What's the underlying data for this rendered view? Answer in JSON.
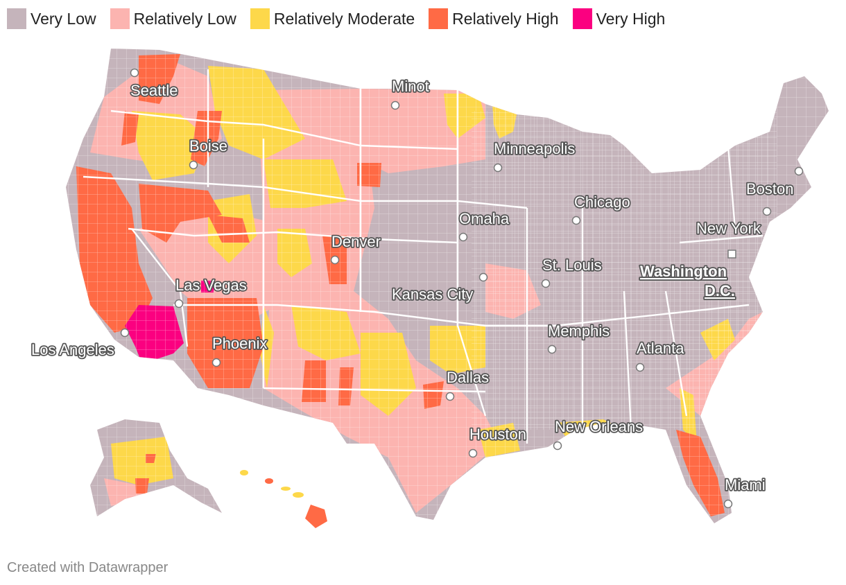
{
  "legend": {
    "items": [
      {
        "label": "Very Low",
        "color": "#c5b4bb"
      },
      {
        "label": "Relatively Low",
        "color": "#fcb4b0"
      },
      {
        "label": "Relatively Moderate",
        "color": "#fdd84a"
      },
      {
        "label": "Relatively High",
        "color": "#ff6a45"
      },
      {
        "label": "Very High",
        "color": "#fb0080"
      }
    ]
  },
  "cities": [
    "Seattle",
    "Minot",
    "Boise",
    "Minneapolis",
    "Boston",
    "Chicago",
    "Omaha",
    "New York",
    "Denver",
    "Washington D.C.",
    "St. Louis",
    "Las Vegas",
    "Kansas City",
    "Memphis",
    "Los Angeles",
    "Phoenix",
    "Atlanta",
    "Dallas",
    "New Orleans",
    "Houston",
    "Miami"
  ],
  "footer": {
    "credit": "Created with Datawrapper"
  }
}
